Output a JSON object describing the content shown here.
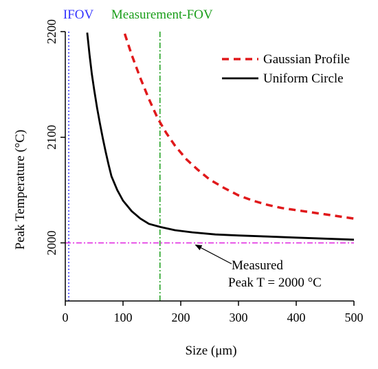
{
  "chart_data": {
    "type": "line",
    "xlabel": "Size (μm)",
    "ylabel": "Peak Temperature (°C)",
    "xlim": [
      0,
      500
    ],
    "ylim": [
      1945,
      2200
    ],
    "x_ticks": [
      0,
      100,
      200,
      300,
      400,
      500
    ],
    "y_ticks": [
      2000,
      2100,
      2200
    ],
    "grid": false,
    "legend": {
      "placement": "top-right"
    },
    "series": [
      {
        "name": "Gaussian Profile",
        "color": "#e0191b",
        "style": "dashed",
        "x": [
          103,
          115,
          130,
          145,
          160,
          175,
          190,
          210,
          230,
          250,
          275,
          300,
          325,
          350,
          375,
          400,
          425,
          450,
          475,
          500
        ],
        "y": [
          2198,
          2178,
          2156,
          2136,
          2118,
          2104,
          2092,
          2079,
          2069,
          2060,
          2052,
          2045,
          2040,
          2036,
          2033,
          2031,
          2029,
          2027,
          2025,
          2023
        ]
      },
      {
        "name": "Uniform Circle",
        "color": "#000000",
        "style": "solid",
        "x": [
          38,
          42,
          46,
          50,
          55,
          60,
          65,
          70,
          75,
          80,
          90,
          100,
          115,
          130,
          145,
          165,
          190,
          220,
          260,
          300,
          350,
          400,
          450,
          500
        ],
        "y": [
          2199,
          2178,
          2160,
          2145,
          2128,
          2113,
          2099,
          2086,
          2074,
          2063,
          2050,
          2040,
          2030,
          2023,
          2018,
          2015,
          2012,
          2010,
          2008,
          2007,
          2006,
          2005,
          2004,
          2003
        ]
      }
    ],
    "reference_lines": [
      {
        "orientation": "vertical",
        "value": 6,
        "label": "IFOV",
        "color": "#3333ff",
        "style": "dotted"
      },
      {
        "orientation": "vertical",
        "value": 164,
        "label": "Measurement-FOV",
        "color": "#1a9e1a",
        "style": "dashdot"
      },
      {
        "orientation": "horizontal",
        "value": 2000,
        "label": "",
        "color": "#e020e0",
        "style": "dashdot"
      }
    ],
    "annotation": {
      "lines": [
        "Measured",
        "Peak T = 2000 °C"
      ],
      "arrow_to": [
        222,
        2000
      ]
    }
  }
}
